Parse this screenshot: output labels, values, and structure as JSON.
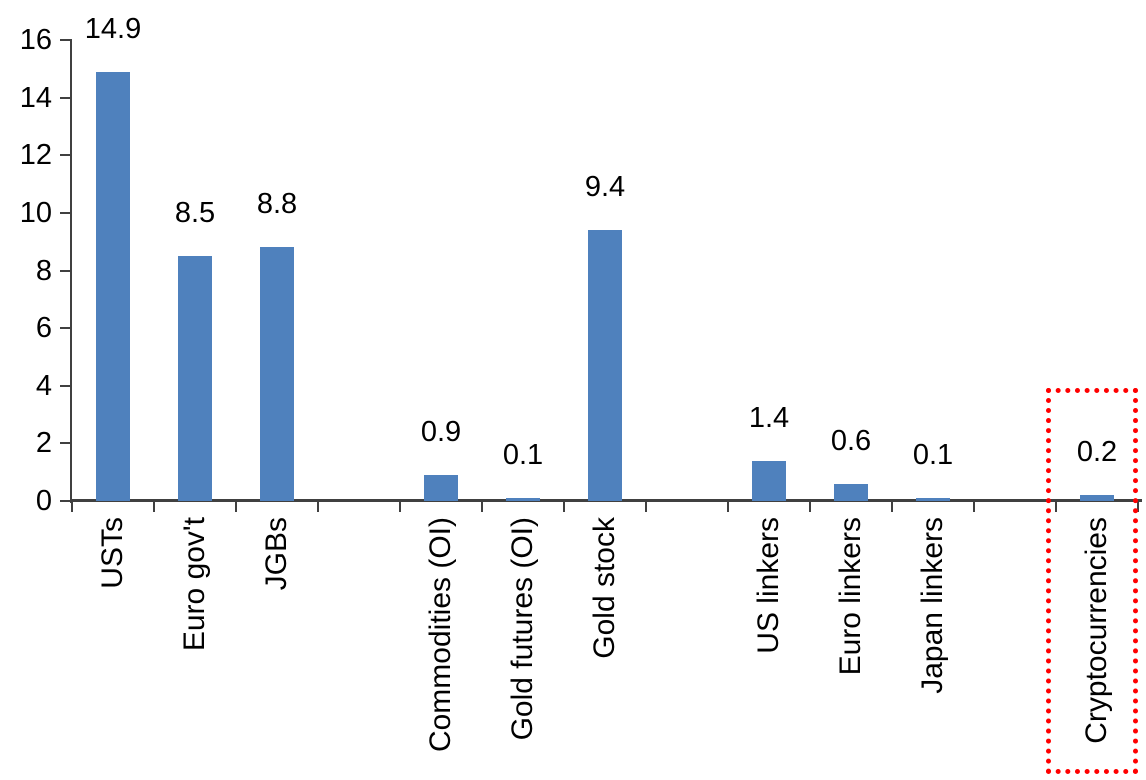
{
  "chart_data": {
    "type": "bar",
    "title": "",
    "categories": [
      "USTs",
      "Euro gov't",
      "JGBs",
      "Commodities (OI)",
      "Gold futures (OI)",
      "Gold stock",
      "US linkers",
      "Euro linkers",
      "Japan linkers",
      "Cryptocurrencies"
    ],
    "values": [
      14.9,
      8.5,
      8.8,
      0.9,
      0.1,
      9.4,
      1.4,
      0.6,
      0.1,
      0.2
    ],
    "data_labels": [
      "14.9",
      "8.5",
      "8.8",
      "0.9",
      "0.1",
      "9.4",
      "1.4",
      "0.6",
      "0.1",
      "0.2"
    ],
    "groups": [
      [
        "USTs",
        "Euro gov't",
        "JGBs"
      ],
      [
        "Commodities (OI)",
        "Gold futures (OI)",
        "Gold stock"
      ],
      [
        "US linkers",
        "Euro linkers",
        "Japan linkers"
      ],
      [
        "Cryptocurrencies"
      ]
    ],
    "slot_index": [
      0,
      1,
      2,
      4,
      5,
      6,
      8,
      9,
      10,
      12
    ],
    "num_slots": 13,
    "xlabel": "",
    "ylabel": "",
    "ylim": [
      0,
      16
    ],
    "yticks": [
      0,
      2,
      4,
      6,
      8,
      10,
      12,
      14,
      16
    ],
    "grid": false,
    "legend": false,
    "bar_color": "#4F81BD",
    "axis_color": "#404040",
    "text_color": "#000000",
    "highlight": {
      "target": "Cryptocurrencies",
      "border_color": "#FF0000",
      "border_style": "dotted"
    }
  }
}
